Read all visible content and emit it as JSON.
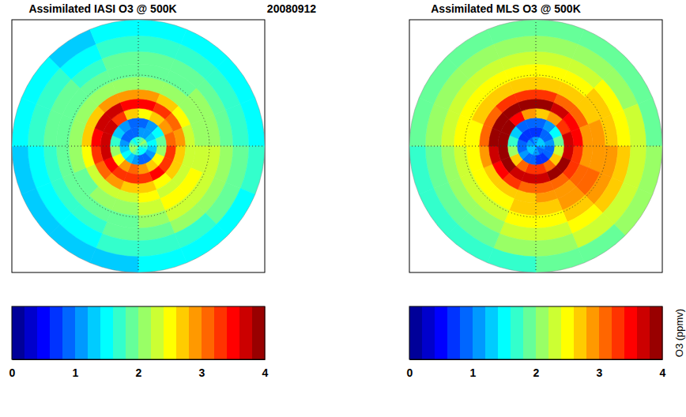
{
  "chart_data": [
    {
      "type": "polar_heatmap",
      "title": "Assimilated IASI O3 @ 500K",
      "date": "20080912",
      "rlim": [
        -90,
        -10
      ],
      "grid": true,
      "lat_grid": [
        -45
      ],
      "lon_grid": [
        0,
        90,
        180,
        270
      ],
      "lat_edges": [
        -90,
        -84,
        -78,
        -72,
        -66,
        -60,
        -54,
        -46,
        -38,
        -30,
        -20,
        -10
      ],
      "sector_edges": [
        0,
        22.5,
        45,
        67.5,
        90,
        112.5,
        135,
        157.5,
        180,
        202.5,
        225,
        247.5,
        270,
        292.5,
        315,
        337.5,
        360
      ],
      "cells": [
        [
          1.6,
          1.8,
          2.0,
          1.9,
          1.7,
          1.5,
          1.4,
          1.5,
          1.6,
          1.8,
          2.0,
          2.1,
          1.9,
          1.7,
          1.5,
          1.6
        ],
        [
          1.0,
          1.1,
          1.3,
          1.4,
          1.2,
          1.0,
          0.9,
          0.9,
          1.0,
          1.2,
          1.4,
          1.3,
          1.1,
          0.9,
          0.8,
          0.9
        ],
        [
          0.9,
          1.1,
          1.4,
          1.8,
          2.1,
          2.4,
          2.7,
          2.9,
          3.0,
          2.8,
          2.5,
          2.1,
          1.7,
          1.3,
          1.0,
          0.9
        ],
        [
          2.4,
          2.6,
          2.9,
          3.1,
          3.2,
          3.3,
          3.4,
          3.3,
          3.2,
          3.3,
          3.4,
          3.6,
          3.7,
          3.6,
          3.2,
          2.7
        ],
        [
          3.4,
          3.3,
          3.1,
          2.9,
          2.7,
          2.6,
          2.5,
          2.6,
          2.7,
          2.8,
          3.0,
          3.3,
          3.5,
          3.6,
          3.6,
          3.5
        ],
        [
          2.8,
          2.6,
          2.4,
          2.3,
          2.2,
          2.2,
          2.3,
          2.4,
          2.3,
          2.2,
          2.2,
          2.4,
          2.6,
          2.7,
          2.8,
          2.9
        ],
        [
          2.1,
          2.0,
          2.0,
          2.1,
          2.2,
          2.4,
          2.4,
          2.2,
          2.1,
          2.0,
          1.9,
          2.0,
          2.0,
          2.1,
          2.1,
          2.1
        ],
        [
          1.9,
          1.9,
          2.0,
          2.1,
          2.2,
          2.3,
          2.2,
          2.0,
          1.9,
          1.9,
          1.8,
          1.8,
          1.9,
          1.9,
          1.8,
          1.9
        ],
        [
          1.8,
          1.8,
          1.9,
          1.9,
          2.0,
          2.1,
          2.0,
          1.9,
          1.8,
          1.7,
          1.7,
          1.7,
          1.8,
          1.8,
          1.7,
          1.8
        ],
        [
          1.6,
          1.6,
          1.7,
          1.7,
          1.8,
          1.8,
          1.7,
          1.6,
          1.6,
          1.5,
          1.5,
          1.5,
          1.6,
          1.6,
          1.5,
          1.6
        ],
        [
          1.4,
          1.4,
          1.5,
          1.5,
          1.6,
          1.5,
          1.4,
          1.4,
          1.3,
          1.3,
          1.2,
          1.3,
          1.4,
          1.4,
          1.3,
          1.4
        ]
      ],
      "colorbar": {
        "range": [
          0,
          4
        ],
        "ticks": [
          0,
          1,
          2,
          3,
          4
        ]
      }
    },
    {
      "type": "polar_heatmap",
      "title": "Assimilated MLS O3 @ 500K",
      "rlim": [
        -90,
        -10
      ],
      "grid": true,
      "lat_grid": [
        -45
      ],
      "lon_grid": [
        0,
        90,
        180,
        270
      ],
      "lat_edges": [
        -90,
        -84,
        -78,
        -72,
        -66,
        -60,
        -54,
        -46,
        -38,
        -30,
        -20,
        -10
      ],
      "sector_edges": [
        0,
        22.5,
        45,
        67.5,
        90,
        112.5,
        135,
        157.5,
        180,
        202.5,
        225,
        247.5,
        270,
        292.5,
        315,
        337.5,
        360
      ],
      "cells": [
        [
          1.1,
          1.2,
          1.3,
          1.2,
          1.0,
          0.9,
          0.9,
          1.0,
          1.1,
          1.2,
          1.3,
          1.2,
          1.1,
          1.0,
          0.9,
          1.0
        ],
        [
          0.7,
          0.8,
          0.9,
          1.0,
          0.9,
          0.8,
          0.7,
          0.7,
          0.8,
          0.9,
          1.0,
          0.9,
          0.8,
          0.7,
          0.7,
          0.7
        ],
        [
          0.8,
          1.0,
          1.4,
          1.9,
          2.3,
          2.7,
          3.0,
          3.2,
          3.2,
          3.0,
          2.6,
          2.1,
          1.6,
          1.2,
          0.9,
          0.8
        ],
        [
          2.6,
          2.9,
          3.3,
          3.6,
          3.7,
          3.8,
          3.8,
          3.7,
          3.6,
          3.7,
          3.8,
          3.9,
          3.9,
          3.8,
          3.4,
          2.9
        ],
        [
          3.8,
          3.7,
          3.5,
          3.4,
          3.3,
          3.2,
          3.0,
          3.0,
          3.1,
          3.2,
          3.4,
          3.6,
          3.8,
          3.9,
          3.9,
          3.8
        ],
        [
          3.3,
          3.1,
          3.0,
          2.9,
          2.9,
          3.0,
          2.9,
          2.8,
          2.7,
          2.7,
          2.7,
          2.8,
          3.0,
          3.1,
          3.2,
          3.3
        ],
        [
          2.6,
          2.6,
          2.7,
          2.8,
          2.9,
          3.0,
          2.9,
          2.7,
          2.6,
          2.5,
          2.5,
          2.5,
          2.5,
          2.6,
          2.6,
          2.6
        ],
        [
          2.4,
          2.5,
          2.6,
          2.7,
          2.8,
          2.8,
          2.7,
          2.5,
          2.4,
          2.3,
          2.3,
          2.3,
          2.4,
          2.4,
          2.4,
          2.4
        ],
        [
          2.2,
          2.3,
          2.4,
          2.5,
          2.6,
          2.6,
          2.5,
          2.3,
          2.2,
          2.1,
          2.1,
          2.1,
          2.2,
          2.2,
          2.2,
          2.2
        ],
        [
          2.0,
          2.1,
          2.1,
          2.2,
          2.3,
          2.3,
          2.2,
          2.1,
          2.0,
          1.9,
          1.9,
          1.9,
          2.0,
          2.0,
          2.0,
          2.0
        ],
        [
          1.8,
          1.8,
          1.9,
          1.9,
          2.0,
          2.0,
          1.9,
          1.8,
          1.7,
          1.7,
          1.7,
          1.7,
          1.8,
          1.8,
          1.8,
          1.8
        ]
      ],
      "colorbar": {
        "range": [
          0,
          4
        ],
        "ticks": [
          0,
          1,
          2,
          3,
          4
        ],
        "label": "O3 (ppmv)"
      }
    }
  ]
}
